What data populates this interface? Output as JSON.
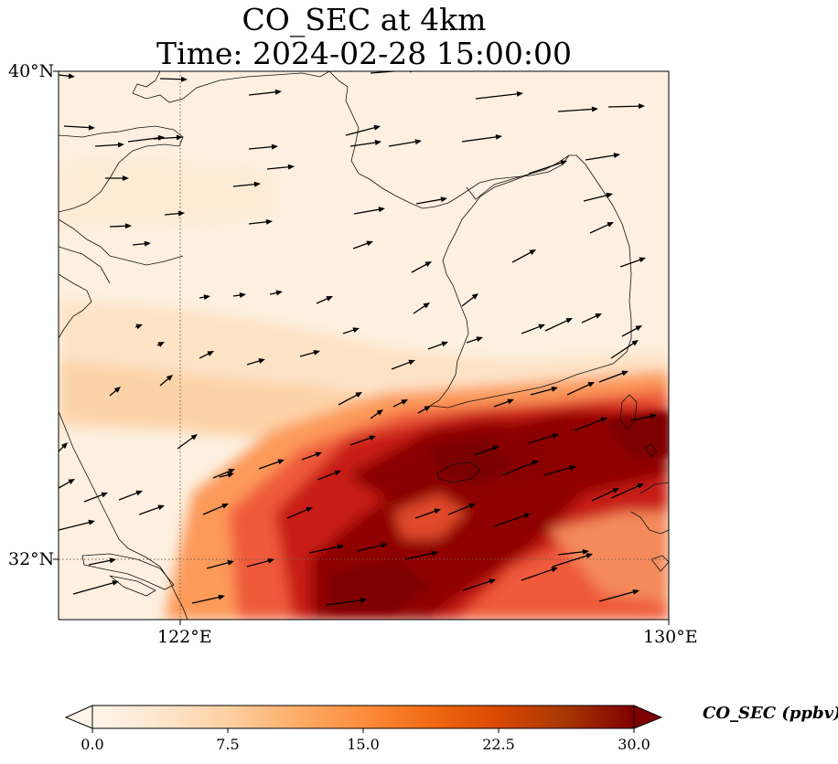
{
  "title": {
    "line1": "CO_SEC at 4km",
    "line2": "Time: 2024-02-28 15:00:00"
  },
  "map": {
    "lon_range": [
      119,
      130
    ],
    "lat_range": [
      30.9,
      40
    ],
    "lat_ticks": [
      "40°N",
      "32°N"
    ],
    "lon_ticks": [
      "122°E",
      "130°E"
    ],
    "gridlines": {
      "lon": 122,
      "lat": 32,
      "style": "dotted"
    }
  },
  "colorbar": {
    "label": "CO_SEC (ppbv)",
    "ticks": [
      "0.0",
      "7.5",
      "15.0",
      "22.5",
      "30.0"
    ],
    "min": 0,
    "max": 30,
    "extend": "both",
    "colormap": [
      "#fff5eb",
      "#fee6ce",
      "#fdd0a2",
      "#fdae6b",
      "#fd8d3c",
      "#f16913",
      "#d94801",
      "#a63603",
      "#7f0000"
    ]
  },
  "colors": {
    "background": "#fff5eb",
    "coast": "#111111",
    "vector": "#000000"
  }
}
